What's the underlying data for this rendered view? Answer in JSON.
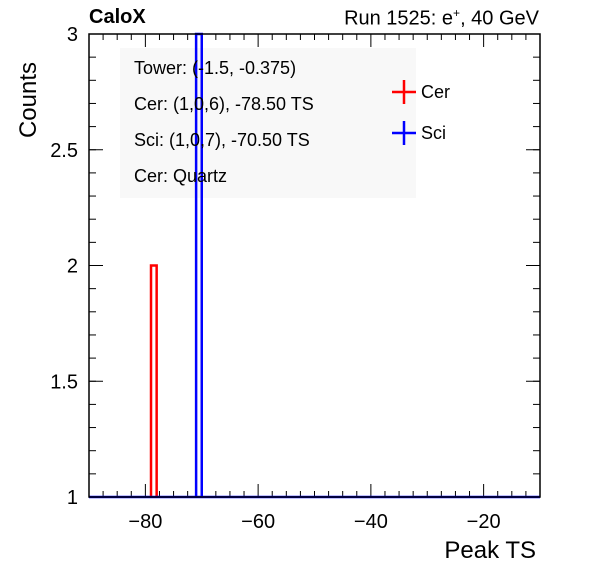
{
  "header": {
    "experiment": "CaloX",
    "run_prefix": "Run 1525: e",
    "run_sup": "+",
    "run_suffix": ", 40 GeV"
  },
  "info": [
    "Tower: (-1.5, -0.375)",
    "Cer: (1,0,6), -78.50 TS",
    "Sci: (1,0,7), -70.50 TS",
    "Cer: Quartz"
  ],
  "chart_data": {
    "type": "histogram",
    "xlabel": "Peak TS",
    "ylabel": "Counts",
    "xlim": [
      -90,
      -10
    ],
    "ylim": [
      1,
      3
    ],
    "xticks": [
      -80,
      -60,
      -40,
      -20
    ],
    "yticks": [
      1,
      1.5,
      2,
      2.5,
      3
    ],
    "series": [
      {
        "name": "Cer",
        "color": "#ff0000",
        "bins": [
          {
            "x0": -80,
            "x1": -79,
            "count": 1
          },
          {
            "x0": -79,
            "x1": -78,
            "count": 2
          },
          {
            "x0": -71,
            "x1": -70,
            "count": 1
          }
        ]
      },
      {
        "name": "Sci",
        "color": "#0000ff",
        "bins": [
          {
            "x0": -71,
            "x1": -70,
            "count": 3
          },
          {
            "x0": -70,
            "x1": -69,
            "count": 1
          }
        ]
      }
    ],
    "legend_position": "top-right"
  }
}
